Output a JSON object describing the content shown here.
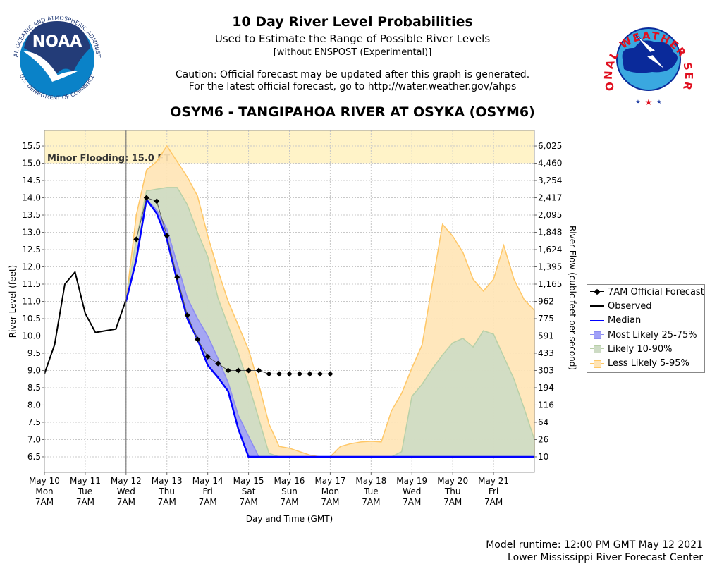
{
  "header": {
    "title": "10 Day River Level Probabilities",
    "subtitle": "Used to Estimate the Range of Possible River Levels",
    "subtitle2": "[without ENSPOST (Experimental)]",
    "caution1": "Caution: Official forecast may be updated after this graph is generated.",
    "caution2": "For the latest official forecast, go to http://water.weather.gov/ahps",
    "station": "OSYM6 - TANGIPAHOA RIVER AT OSYKA (OSYM6)"
  },
  "logos": {
    "left": "NOAA - National Oceanic and Atmospheric Administration - U.S. Department of Commerce",
    "right": "National Weather Service"
  },
  "footer": {
    "runtime": "Model runtime: 12:00 PM GMT May 12 2021",
    "center": "Lower Mississippi River Forecast Center"
  },
  "chart_data": {
    "type": "area",
    "title": "10 Day River Level Probabilities",
    "xlabel": "Day and Time (GMT)",
    "ylabel": "River Level (feet)",
    "ylabel_right": "River Flow (cubic feet per second)",
    "x_units": "hours after May 10 7AM GMT",
    "xlim": [
      0,
      288
    ],
    "ylim": [
      6.05,
      15.95
    ],
    "grid": true,
    "legend_position": "right",
    "flood": {
      "label": "Minor Flooding: 15.0 FT",
      "level": 15.0,
      "color": "#fff3c8"
    },
    "now_hour": 48,
    "x_ticks": [
      {
        "hour": 0,
        "lines": [
          "May 10",
          "Mon",
          "7AM"
        ]
      },
      {
        "hour": 24,
        "lines": [
          "May 11",
          "Tue",
          "7AM"
        ]
      },
      {
        "hour": 48,
        "lines": [
          "May 12",
          "Wed",
          "7AM"
        ]
      },
      {
        "hour": 72,
        "lines": [
          "May 13",
          "Thu",
          "7AM"
        ]
      },
      {
        "hour": 96,
        "lines": [
          "May 14",
          "Fri",
          "7AM"
        ]
      },
      {
        "hour": 120,
        "lines": [
          "May 15",
          "Sat",
          "7AM"
        ]
      },
      {
        "hour": 144,
        "lines": [
          "May 16",
          "Sun",
          "7AM"
        ]
      },
      {
        "hour": 168,
        "lines": [
          "May 17",
          "Mon",
          "7AM"
        ]
      },
      {
        "hour": 192,
        "lines": [
          "May 18",
          "Tue",
          "7AM"
        ]
      },
      {
        "hour": 216,
        "lines": [
          "May 19",
          "Wed",
          "7AM"
        ]
      },
      {
        "hour": 240,
        "lines": [
          "May 20",
          "Thu",
          "7AM"
        ]
      },
      {
        "hour": 264,
        "lines": [
          "May 21",
          "Fri",
          "7AM"
        ]
      }
    ],
    "y_ticks": [
      6.5,
      7.0,
      7.5,
      8.0,
      8.5,
      9.0,
      9.5,
      10.0,
      10.5,
      11.0,
      11.5,
      12.0,
      12.5,
      13.0,
      13.5,
      14.0,
      14.5,
      15.0,
      15.5
    ],
    "y_tick_labels": [
      "6.5",
      "7.0",
      "7.5",
      "8.0",
      "8.5",
      "9.0",
      "9.5",
      "10.0",
      "10.5",
      "11.0",
      "11.5",
      "12.0",
      "12.5",
      "13.0",
      "13.5",
      "14.0",
      "14.5",
      "15.0",
      "15.5"
    ],
    "right_tick_labels": [
      "10",
      "26",
      "64",
      "116",
      "194",
      "303",
      "433",
      "591",
      "775",
      "962",
      "1,165",
      "1,395",
      "1,624",
      "1,848",
      "2,095",
      "2,417",
      "3,254",
      "4,460",
      "6,025"
    ],
    "legend": [
      "7AM Official Forecast",
      "Observed",
      "Median",
      "Most Likely 25-75%",
      "Likely 10-90%",
      "Less Likely 5-95%"
    ],
    "observed": {
      "start": 0,
      "step": 6,
      "values": [
        8.9,
        9.75,
        11.5,
        11.85,
        10.65,
        10.1,
        10.15,
        10.2,
        11.05
      ],
      "color": "#000000"
    },
    "official": {
      "start": 54,
      "step": 6,
      "values": [
        12.8,
        14.0,
        13.9,
        12.9,
        11.7,
        10.6,
        9.9,
        9.4,
        9.2,
        9.0,
        9.0,
        9.0,
        9.0,
        8.9,
        8.9,
        8.9,
        8.9,
        8.9,
        8.9,
        8.9
      ],
      "color": "#000000"
    },
    "forecast_start": 48,
    "forecast_step": 6,
    "median": {
      "color": "#0000ff",
      "values": [
        11.0,
        12.2,
        13.95,
        13.55,
        12.8,
        11.6,
        10.5,
        9.9,
        9.15,
        8.8,
        8.4,
        7.3,
        6.5,
        6.5,
        6.5,
        6.5,
        6.5,
        6.5,
        6.5,
        6.5,
        6.5,
        6.5,
        6.5,
        6.5,
        6.5,
        6.5,
        6.5,
        6.5,
        6.5,
        6.5,
        6.5,
        6.5,
        6.5,
        6.5,
        6.5,
        6.5,
        6.5,
        6.5,
        6.5,
        6.5,
        6.5
      ]
    },
    "bands": [
      {
        "name": "Less Likely 5-95%",
        "fill": "#ffe4b5",
        "stroke": "#ffc766",
        "upper": [
          11.0,
          13.5,
          14.8,
          15.05,
          15.5,
          15.05,
          14.6,
          14.05,
          12.9,
          11.9,
          11.0,
          10.3,
          9.6,
          8.6,
          7.45,
          6.8,
          6.75,
          6.65,
          6.55,
          6.5,
          6.5,
          6.8,
          6.88,
          6.93,
          6.95,
          6.93,
          7.83,
          8.34,
          9.07,
          9.74,
          11.5,
          13.23,
          12.89,
          12.42,
          11.64,
          11.3,
          11.64,
          12.62,
          11.64,
          11.05,
          10.74
        ]
      },
      {
        "name": "Likely 10-90%",
        "fill": "#cddbc4",
        "stroke": "#b8d0a8",
        "upper": [
          11.0,
          12.8,
          14.2,
          14.25,
          14.3,
          14.3,
          13.8,
          13.0,
          12.3,
          11.1,
          10.3,
          9.5,
          8.6,
          7.6,
          6.6,
          6.5,
          6.5,
          6.5,
          6.5,
          6.5,
          6.5,
          6.5,
          6.5,
          6.5,
          6.5,
          6.5,
          6.5,
          6.65,
          8.25,
          8.6,
          9.05,
          9.45,
          9.8,
          9.93,
          9.68,
          10.15,
          10.05,
          9.4,
          8.75,
          7.9,
          7.0
        ]
      },
      {
        "name": "Most Likely 25-75%",
        "fill": "#a0a0f8",
        "stroke": "#8c8cf0",
        "upper": [
          11.0,
          12.3,
          13.95,
          13.65,
          13.1,
          12.1,
          11.1,
          10.5,
          10.0,
          9.35,
          8.65,
          7.7,
          7.1,
          6.5,
          6.5,
          6.5,
          6.5,
          6.5,
          6.5,
          6.5,
          6.5,
          6.5,
          6.5,
          6.5,
          6.5,
          6.5,
          6.5,
          6.5,
          6.5,
          6.5,
          6.5,
          6.5,
          6.5,
          6.5,
          6.5,
          6.5,
          6.5,
          6.5,
          6.5,
          6.5,
          6.5
        ]
      }
    ]
  }
}
